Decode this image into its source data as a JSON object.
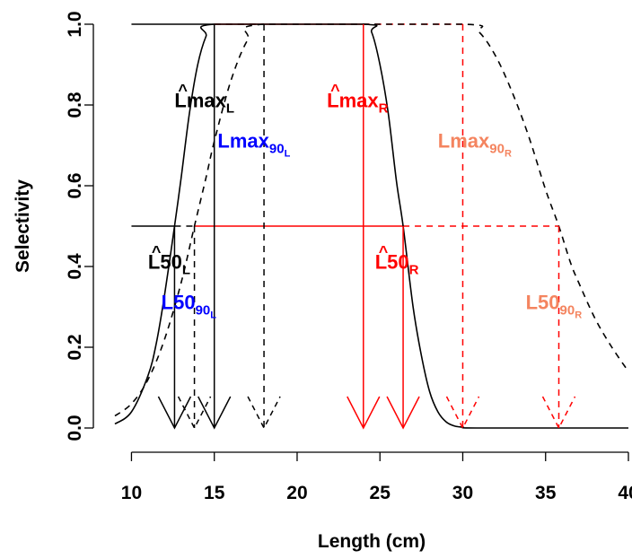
{
  "chart_data": {
    "type": "line",
    "xlabel": "Length (cm)",
    "ylabel": "Selectivity",
    "xlim": [
      9,
      40
    ],
    "ylim": [
      0,
      1
    ],
    "x_ticks": [
      10,
      15,
      20,
      25,
      30,
      35,
      40
    ],
    "y_ticks": [
      0.0,
      0.2,
      0.4,
      0.6,
      0.8,
      1.0
    ],
    "y_tick_labels": [
      "0.0",
      "0.2",
      "0.4",
      "0.6",
      "0.8",
      "1.0"
    ],
    "grid": false,
    "series": [
      {
        "color": "#000000",
        "dash": "solid",
        "x": [
          9,
          10,
          11,
          11.5,
          12,
          12.6,
          13,
          13.5,
          14,
          14.5,
          15,
          24,
          24.5,
          25,
          25.5,
          26,
          26.4,
          27,
          27.5,
          28,
          28.5,
          29,
          29.5,
          30,
          31,
          40
        ],
        "values": [
          0.01,
          0.04,
          0.13,
          0.21,
          0.33,
          0.5,
          0.62,
          0.78,
          0.9,
          0.97,
          1.0,
          1.0,
          0.98,
          0.9,
          0.78,
          0.61,
          0.5,
          0.3,
          0.18,
          0.09,
          0.04,
          0.015,
          0.005,
          0.002,
          0.0,
          0.0
        ]
      },
      {
        "color": "#000000",
        "dash": "dashed",
        "x": [
          9,
          10,
          11,
          12,
          13,
          13.8,
          14.5,
          15,
          16,
          17,
          18,
          30,
          31,
          32,
          33,
          34,
          35,
          35.8,
          36.5,
          37,
          38,
          39,
          40
        ],
        "values": [
          0.03,
          0.06,
          0.12,
          0.22,
          0.36,
          0.5,
          0.62,
          0.71,
          0.86,
          0.96,
          1.0,
          1.0,
          0.98,
          0.92,
          0.83,
          0.72,
          0.59,
          0.5,
          0.41,
          0.36,
          0.27,
          0.2,
          0.14
        ]
      }
    ],
    "reference_lines": [
      {
        "color": "#000000",
        "dash": "solid",
        "x1": 10,
        "y1": 1.0,
        "x2": 15,
        "y2": 1.0
      },
      {
        "color": "#000000",
        "dash": "solid",
        "x1": 10,
        "y1": 0.5,
        "x2": 12.6,
        "y2": 0.5
      },
      {
        "color": "#000000",
        "dash": "dashed",
        "x1": 15,
        "y1": 1.0,
        "x2": 18,
        "y2": 1.0
      },
      {
        "color": "#000000",
        "dash": "dashed",
        "x1": 12.6,
        "y1": 0.5,
        "x2": 13.8,
        "y2": 0.5
      },
      {
        "color": "#ff0000",
        "dash": "solid",
        "x1": 15,
        "y1": 1.0,
        "x2": 24,
        "y2": 1.0
      },
      {
        "color": "#ff0000",
        "dash": "solid",
        "x1": 13.8,
        "y1": 0.5,
        "x2": 26.4,
        "y2": 0.5
      },
      {
        "color": "#ff0000",
        "dash": "dashed",
        "x1": 24,
        "y1": 1.0,
        "x2": 30,
        "y2": 1.0
      },
      {
        "color": "#ff0000",
        "dash": "dashed",
        "x1": 26.4,
        "y1": 0.5,
        "x2": 35.8,
        "y2": 0.5
      }
    ],
    "arrows": [
      {
        "x": 12.6,
        "y_top": 0.5,
        "color": "#000000",
        "dash": "solid"
      },
      {
        "x": 13.8,
        "y_top": 0.5,
        "color": "#000000",
        "dash": "dashed"
      },
      {
        "x": 15,
        "y_top": 1.0,
        "color": "#000000",
        "dash": "solid"
      },
      {
        "x": 18,
        "y_top": 1.0,
        "color": "#000000",
        "dash": "dashed"
      },
      {
        "x": 24,
        "y_top": 1.0,
        "color": "#ff0000",
        "dash": "solid"
      },
      {
        "x": 26.4,
        "y_top": 0.5,
        "color": "#ff0000",
        "dash": "solid"
      },
      {
        "x": 30,
        "y_top": 1.0,
        "color": "#ff0000",
        "dash": "dashed"
      },
      {
        "x": 35.8,
        "y_top": 0.5,
        "color": "#ff0000",
        "dash": "dashed"
      }
    ],
    "annotations": [
      {
        "name": "lmax-l-hat",
        "main": "Lmax",
        "sub": "L",
        "hat": true,
        "x": 12.6,
        "y": 0.795,
        "color": "#000000"
      },
      {
        "name": "lmax-90-l",
        "main": "Lmax",
        "sub": "90",
        "subsub": "L",
        "hat": false,
        "x": 15.2,
        "y": 0.695,
        "color": "#0000ff"
      },
      {
        "name": "lmax-r-hat",
        "main": "Lmax",
        "sub": "R",
        "hat": true,
        "x": 21.8,
        "y": 0.795,
        "color": "#ff0000"
      },
      {
        "name": "lmax-90-r",
        "main": "Lmax",
        "sub": "90",
        "subsub": "R",
        "hat": false,
        "x": 28.5,
        "y": 0.695,
        "color": "#f4845f"
      },
      {
        "name": "l50-l-hat",
        "main": "L50",
        "sub": "L",
        "hat": true,
        "x": 11.0,
        "y": 0.395,
        "color": "#000000"
      },
      {
        "name": "l50-90-l",
        "main": "L50",
        "sub": "90",
        "subsub": "L",
        "hat": false,
        "x": 11.8,
        "y": 0.295,
        "color": "#0000ff"
      },
      {
        "name": "l50-r-hat",
        "main": "L50",
        "sub": "R",
        "hat": true,
        "x": 24.7,
        "y": 0.395,
        "color": "#ff0000"
      },
      {
        "name": "l50-90-r",
        "main": "L50",
        "sub": "90",
        "subsub": "R",
        "hat": false,
        "x": 33.8,
        "y": 0.295,
        "color": "#f4845f"
      }
    ]
  }
}
